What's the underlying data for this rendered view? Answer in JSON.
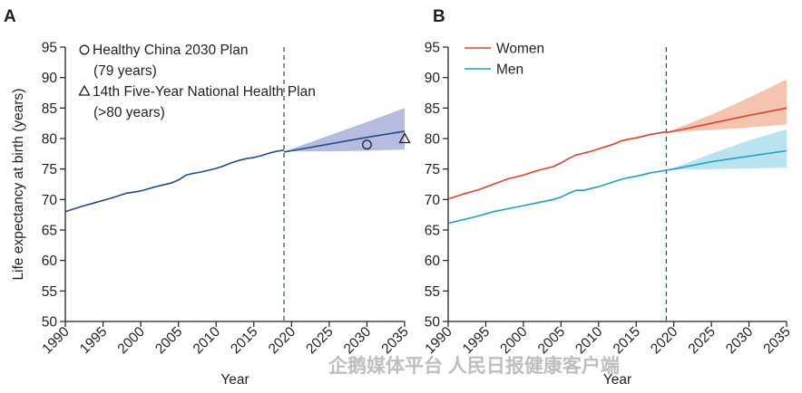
{
  "colors": {
    "china": "#1f4e8c",
    "china_band": "#b5bce0",
    "women": "#e0402a",
    "women_band": "#f5c4b0",
    "men": "#1aa3c2",
    "men_band": "#b8e3ef",
    "axis": "#231f20",
    "dashed_line": "#2d5d74"
  },
  "watermark": "企鹅媒体平台 人民日报健康客户端",
  "chart_data": [
    {
      "panel": "A",
      "type": "line",
      "xlabel": "Year",
      "ylabel": "Life expectancy at birth (years)",
      "xlim": [
        1990,
        2035
      ],
      "ylim": [
        50,
        95
      ],
      "x_ticks": [
        "1990",
        "1995",
        "2000",
        "2005",
        "2010",
        "2015",
        "2020",
        "2025",
        "2030",
        "2035"
      ],
      "y_ticks": [
        "50",
        "55",
        "60",
        "65",
        "70",
        "75",
        "80",
        "85",
        "90",
        "95"
      ],
      "vline_x": 2019,
      "series": [
        {
          "color_key": "china",
          "x": [
            1990,
            1992,
            1994,
            1996,
            1998,
            2000,
            2002,
            2004,
            2005,
            2006,
            2007,
            2008,
            2009,
            2010,
            2011,
            2012,
            2013,
            2014,
            2015,
            2016,
            2017,
            2018,
            2019
          ],
          "values": [
            68.0,
            68.8,
            69.5,
            70.2,
            71.0,
            71.4,
            72.1,
            72.7,
            73.2,
            74.0,
            74.3,
            74.5,
            74.8,
            75.1,
            75.5,
            76.0,
            76.4,
            76.7,
            76.9,
            77.2,
            77.6,
            77.9,
            78.1
          ]
        },
        {
          "color_key": "china",
          "projection": true,
          "x": [
            2019,
            2020,
            2025,
            2030,
            2035
          ],
          "values": [
            77.8,
            78.0,
            79.1,
            80.2,
            81.2
          ],
          "lower": [
            77.8,
            77.9,
            77.9,
            78.0,
            78.2
          ],
          "upper": [
            77.8,
            78.3,
            80.5,
            82.7,
            85.0
          ]
        }
      ],
      "markers": [
        {
          "symbol": "circle",
          "x": 2030,
          "y": 79
        },
        {
          "symbol": "triangle",
          "x": 2035,
          "y": 80
        }
      ],
      "legend": [
        {
          "symbol": "circle",
          "lines": [
            "Healthy China 2030 Plan",
            "(79 years)"
          ]
        },
        {
          "symbol": "triangle",
          "lines": [
            "14th Five-Year National Health Plan",
            "(>80 years)"
          ]
        }
      ],
      "legend_position": "top-left"
    },
    {
      "panel": "B",
      "type": "line",
      "xlabel": "Year",
      "ylabel": "",
      "xlim": [
        1990,
        2035
      ],
      "ylim": [
        50,
        95
      ],
      "x_ticks": [
        "1990",
        "1995",
        "2000",
        "2005",
        "2010",
        "2015",
        "2020",
        "2025",
        "2030",
        "2035"
      ],
      "y_ticks": [
        "50",
        "55",
        "60",
        "65",
        "70",
        "75",
        "80",
        "85",
        "90",
        "95"
      ],
      "vline_x": 2019,
      "series": [
        {
          "name": "Women",
          "color_key": "women",
          "x": [
            1990,
            1992,
            1994,
            1996,
            1998,
            2000,
            2002,
            2004,
            2005,
            2006,
            2007,
            2008,
            2009,
            2010,
            2011,
            2012,
            2013,
            2014,
            2015,
            2016,
            2017,
            2018,
            2019
          ],
          "values": [
            70.1,
            70.9,
            71.6,
            72.5,
            73.4,
            74.0,
            74.8,
            75.4,
            76.0,
            76.7,
            77.3,
            77.6,
            77.9,
            78.3,
            78.7,
            79.1,
            79.6,
            79.9,
            80.1,
            80.4,
            80.7,
            80.9,
            81.1
          ]
        },
        {
          "color_key": "women",
          "projection": true,
          "x": [
            2019,
            2020,
            2025,
            2030,
            2035
          ],
          "values": [
            81.0,
            81.2,
            82.5,
            83.8,
            85.0
          ],
          "lower": [
            81.0,
            81.1,
            81.4,
            81.8,
            82.3
          ],
          "upper": [
            81.0,
            81.5,
            83.9,
            86.7,
            89.7
          ]
        },
        {
          "name": "Men",
          "color_key": "men",
          "x": [
            1990,
            1992,
            1994,
            1996,
            1998,
            2000,
            2002,
            2004,
            2005,
            2006,
            2007,
            2008,
            2009,
            2010,
            2011,
            2012,
            2013,
            2014,
            2015,
            2016,
            2017,
            2018,
            2019
          ],
          "values": [
            66.1,
            66.7,
            67.3,
            68.0,
            68.5,
            69.0,
            69.5,
            70.0,
            70.4,
            71.0,
            71.5,
            71.5,
            71.8,
            72.1,
            72.5,
            72.9,
            73.3,
            73.6,
            73.8,
            74.1,
            74.4,
            74.6,
            74.8
          ]
        },
        {
          "color_key": "men",
          "projection": true,
          "x": [
            2019,
            2020,
            2025,
            2030,
            2035
          ],
          "values": [
            74.8,
            75.0,
            76.2,
            77.1,
            78.0
          ],
          "lower": [
            74.8,
            74.9,
            75.0,
            75.1,
            75.2
          ],
          "upper": [
            74.8,
            75.2,
            77.5,
            79.7,
            81.5
          ]
        }
      ],
      "legend_position": "top-left"
    }
  ]
}
